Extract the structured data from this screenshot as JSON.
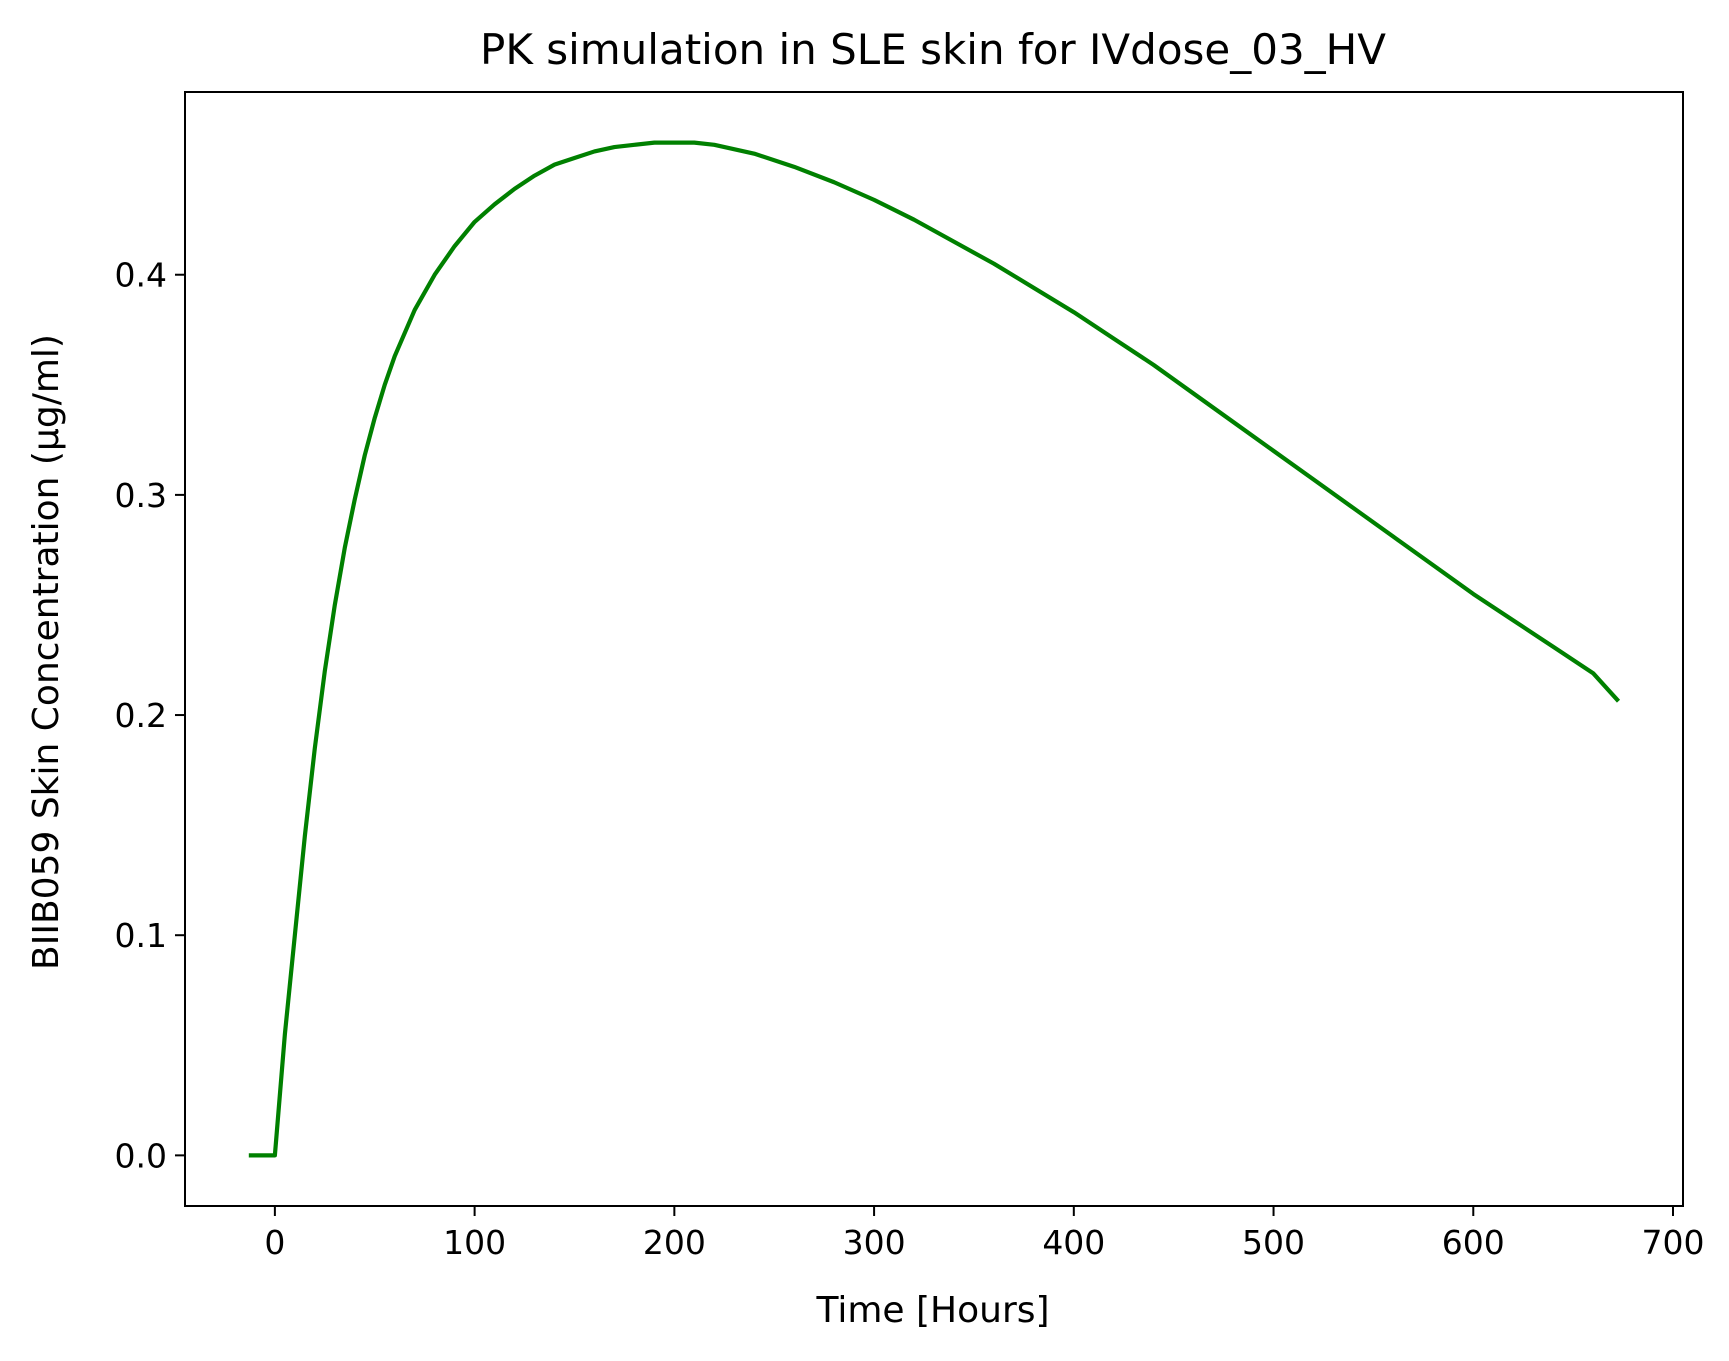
{
  "chart_data": {
    "type": "line",
    "title": "PK simulation in SLE skin for IVdose_03_HV",
    "xlabel": "Time [Hours]",
    "ylabel": "BIIB059 Skin Concentration (µg/ml)",
    "xlim": [
      -45,
      705
    ],
    "ylim": [
      -0.023,
      0.483
    ],
    "xticks": [
      0,
      100,
      200,
      300,
      400,
      500,
      600,
      700
    ],
    "xtick_labels": [
      "0",
      "100",
      "200",
      "300",
      "400",
      "500",
      "600",
      "700"
    ],
    "yticks": [
      0.0,
      0.1,
      0.2,
      0.3,
      0.4
    ],
    "ytick_labels": [
      "0.0",
      "0.1",
      "0.2",
      "0.3",
      "0.4"
    ],
    "grid": false,
    "series": [
      {
        "name": "BIIB059 Skin Concentration",
        "color": "#008000",
        "x": [
          -12,
          0,
          5,
          10,
          15,
          20,
          25,
          30,
          35,
          40,
          45,
          50,
          55,
          60,
          70,
          80,
          90,
          100,
          110,
          120,
          130,
          140,
          150,
          160,
          170,
          180,
          190,
          200,
          206,
          210,
          220,
          240,
          260,
          280,
          300,
          320,
          340,
          360,
          380,
          400,
          420,
          440,
          460,
          480,
          500,
          520,
          540,
          560,
          580,
          600,
          620,
          640,
          660,
          672
        ],
        "y": [
          0.0,
          0.0,
          0.055,
          0.1,
          0.145,
          0.185,
          0.22,
          0.25,
          0.276,
          0.298,
          0.318,
          0.335,
          0.35,
          0.363,
          0.384,
          0.4,
          0.413,
          0.424,
          0.432,
          0.439,
          0.445,
          0.45,
          0.453,
          0.456,
          0.458,
          0.459,
          0.46,
          0.46,
          0.46,
          0.46,
          0.459,
          0.455,
          0.449,
          0.442,
          0.434,
          0.425,
          0.415,
          0.405,
          0.394,
          0.383,
          0.371,
          0.359,
          0.346,
          0.333,
          0.32,
          0.307,
          0.294,
          0.281,
          0.268,
          0.255,
          0.243,
          0.231,
          0.219,
          0.207
        ]
      }
    ]
  }
}
